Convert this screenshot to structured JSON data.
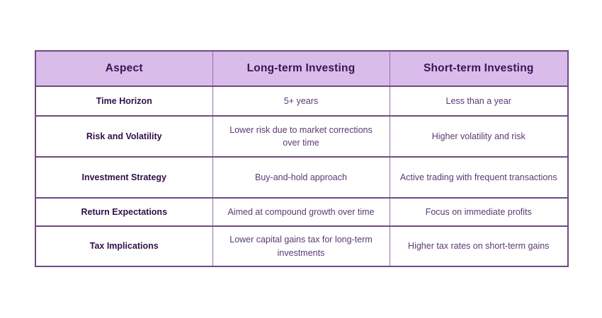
{
  "table": {
    "columns": [
      {
        "label": "Aspect"
      },
      {
        "label": "Long-term Investing"
      },
      {
        "label": "Short-term Investing"
      }
    ],
    "rows": [
      {
        "aspect": "Time Horizon",
        "long_term": "5+ years",
        "short_term": "Less than a year"
      },
      {
        "aspect": "Risk and Volatility",
        "long_term": "Lower risk due to market corrections over time",
        "short_term": "Higher volatility and risk"
      },
      {
        "aspect": "Investment Strategy",
        "long_term": "Buy-and-hold approach",
        "short_term": "Active trading with frequent transactions"
      },
      {
        "aspect": "Return Expectations",
        "long_term": "Aimed at compound growth over time",
        "short_term": "Focus on immediate profits"
      },
      {
        "aspect": "Tax Implications",
        "long_term": "Lower capital gains tax for long-term investments",
        "short_term": "Higher tax rates on short-term gains"
      }
    ]
  },
  "colors": {
    "header_background": "#d9bce9",
    "header_text": "#3c1356",
    "aspect_text": "#321048",
    "body_text": "#5b3a72",
    "border_horizontal": "#6f4b7f",
    "border_vertical": "#976fab",
    "page_background": "#ffffff"
  }
}
